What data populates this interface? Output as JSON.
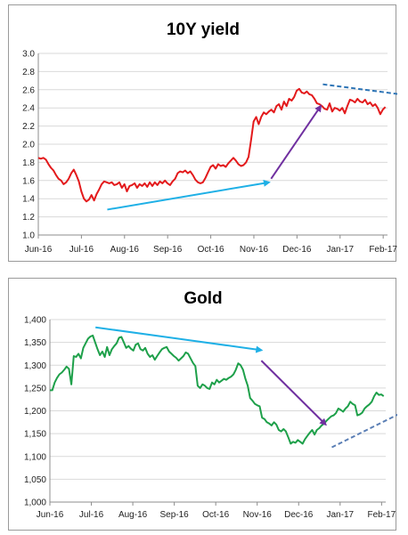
{
  "chart_data": [
    {
      "type": "line",
      "title": "10Y yield",
      "xlabel": "",
      "ylabel": "",
      "ylim": [
        1.0,
        3.0
      ],
      "yticks": [
        "1.0",
        "1.2",
        "1.4",
        "1.6",
        "1.8",
        "2.0",
        "2.2",
        "2.4",
        "2.6",
        "2.8",
        "3.0"
      ],
      "xticks": [
        "Jun-16",
        "Jul-16",
        "Aug-16",
        "Sep-16",
        "Oct-16",
        "Nov-16",
        "Dec-16",
        "Jan-17",
        "Feb-17"
      ],
      "grid": "horizontal",
      "legend": "none",
      "line_color": "#e31a1c",
      "series": [
        {
          "values": [
            1.85,
            1.84,
            1.85,
            1.83,
            1.78,
            1.74,
            1.71,
            1.66,
            1.62,
            1.6,
            1.56,
            1.58,
            1.62,
            1.68,
            1.72,
            1.66,
            1.59,
            1.48,
            1.4,
            1.37,
            1.39,
            1.44,
            1.38,
            1.45,
            1.5,
            1.56,
            1.59,
            1.58,
            1.57,
            1.58,
            1.55,
            1.56,
            1.58,
            1.52,
            1.56,
            1.48,
            1.54,
            1.55,
            1.57,
            1.52,
            1.56,
            1.54,
            1.57,
            1.53,
            1.58,
            1.54,
            1.58,
            1.55,
            1.59,
            1.57,
            1.6,
            1.57,
            1.55,
            1.59,
            1.62,
            1.68,
            1.7,
            1.69,
            1.71,
            1.68,
            1.7,
            1.66,
            1.61,
            1.58,
            1.57,
            1.58,
            1.63,
            1.69,
            1.75,
            1.77,
            1.73,
            1.78,
            1.76,
            1.77,
            1.75,
            1.79,
            1.82,
            1.85,
            1.82,
            1.78,
            1.76,
            1.77,
            1.8,
            1.86,
            2.05,
            2.25,
            2.3,
            2.22,
            2.3,
            2.35,
            2.33,
            2.36,
            2.38,
            2.35,
            2.42,
            2.44,
            2.38,
            2.47,
            2.42,
            2.5,
            2.48,
            2.52,
            2.59,
            2.61,
            2.57,
            2.56,
            2.58,
            2.55,
            2.54,
            2.5,
            2.45,
            2.44,
            2.42,
            2.39,
            2.38,
            2.45,
            2.36,
            2.4,
            2.39,
            2.37,
            2.4,
            2.34,
            2.42,
            2.49,
            2.48,
            2.46,
            2.5,
            2.47,
            2.46,
            2.49,
            2.44,
            2.46,
            2.42,
            2.44,
            2.4,
            2.33,
            2.38,
            2.41
          ]
        }
      ],
      "annotations": [
        {
          "type": "arrow",
          "color": "#1fb0e6",
          "style": "solid",
          "from": [
            1.6,
            1.28
          ],
          "to": [
            5.35,
            1.58
          ]
        },
        {
          "type": "arrow",
          "color": "#7030a0",
          "style": "solid",
          "from": [
            5.4,
            1.62
          ],
          "to": [
            6.55,
            2.42
          ]
        },
        {
          "type": "arrow",
          "color": "#2e75b6",
          "style": "dashed",
          "from": [
            6.6,
            2.66
          ],
          "to": [
            8.55,
            2.54
          ]
        }
      ]
    },
    {
      "type": "line",
      "title": "Gold",
      "xlabel": "",
      "ylabel": "",
      "ylim": [
        1000,
        1400
      ],
      "yticks": [
        "1,000",
        "1,050",
        "1,100",
        "1,150",
        "1,200",
        "1,250",
        "1,300",
        "1,350",
        "1,400"
      ],
      "xticks": [
        "Jun-16",
        "Jul-16",
        "Aug-16",
        "Sep-16",
        "Oct-16",
        "Nov-16",
        "Dec-16",
        "Jan-17",
        "Feb-17"
      ],
      "grid": "horizontal",
      "legend": "none",
      "line_color": "#1ea04a",
      "series": [
        {
          "values": [
            1245,
            1245,
            1262,
            1272,
            1280,
            1284,
            1290,
            1297,
            1292,
            1258,
            1320,
            1318,
            1325,
            1315,
            1338,
            1348,
            1358,
            1363,
            1365,
            1350,
            1335,
            1322,
            1330,
            1318,
            1340,
            1322,
            1335,
            1342,
            1348,
            1360,
            1362,
            1350,
            1338,
            1342,
            1336,
            1332,
            1345,
            1348,
            1335,
            1332,
            1338,
            1325,
            1318,
            1322,
            1312,
            1320,
            1328,
            1335,
            1338,
            1340,
            1330,
            1325,
            1320,
            1316,
            1310,
            1315,
            1320,
            1328,
            1325,
            1315,
            1305,
            1298,
            1255,
            1250,
            1258,
            1255,
            1250,
            1248,
            1262,
            1258,
            1268,
            1262,
            1266,
            1270,
            1268,
            1272,
            1275,
            1280,
            1290,
            1304,
            1300,
            1290,
            1270,
            1255,
            1228,
            1222,
            1215,
            1212,
            1210,
            1185,
            1182,
            1175,
            1172,
            1168,
            1175,
            1170,
            1158,
            1155,
            1160,
            1155,
            1142,
            1128,
            1132,
            1130,
            1136,
            1132,
            1128,
            1138,
            1145,
            1152,
            1158,
            1148,
            1158,
            1162,
            1168,
            1172,
            1178,
            1183,
            1188,
            1190,
            1195,
            1205,
            1202,
            1198,
            1205,
            1210,
            1220,
            1215,
            1212,
            1190,
            1192,
            1196,
            1205,
            1210,
            1214,
            1220,
            1232,
            1240,
            1235,
            1236,
            1232
          ]
        }
      ],
      "annotations": [
        {
          "type": "arrow",
          "color": "#1fb0e6",
          "style": "solid",
          "from": [
            1.1,
            1383
          ],
          "to": [
            5.1,
            1333
          ]
        },
        {
          "type": "arrow",
          "color": "#7030a0",
          "style": "solid",
          "from": [
            5.1,
            1310
          ],
          "to": [
            6.65,
            1170
          ]
        },
        {
          "type": "arrow",
          "color": "#5b7fb5",
          "style": "dashed",
          "from": [
            6.8,
            1120
          ],
          "to": [
            8.75,
            1208
          ]
        }
      ]
    }
  ]
}
